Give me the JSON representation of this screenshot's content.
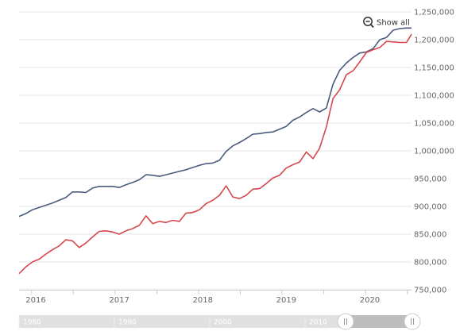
{
  "reset_button": {
    "label": "Show all",
    "icon": "zoom-out-icon"
  },
  "colors": {
    "series_1": "#4a5b7e",
    "series_2": "#d6484d",
    "grid": "#e6e6e6",
    "navigator_bg": "#e0e0e0",
    "navigator_selected": "#bdbdbd",
    "navigator_label": "#ffffff"
  },
  "navigator": {
    "labels": [
      "1980",
      "1990",
      "2000",
      "2010"
    ],
    "range_start": 0.82,
    "range_end": 1.0
  },
  "chart_data": {
    "type": "line",
    "grid": true,
    "legend": "none",
    "ylim": [
      750000,
      1250000
    ],
    "xlim": [
      2015.85,
      2020.55
    ],
    "yticks": [
      750000,
      800000,
      850000,
      900000,
      950000,
      1000000,
      1050000,
      1100000,
      1150000,
      1200000,
      1250000
    ],
    "ytick_labels": [
      "750,000",
      "800,000",
      "850,000",
      "900,000",
      "950,000",
      "1,000,000",
      "1,050,000",
      "1,100,000",
      "1,150,000",
      "1,200,000",
      "1,250,000"
    ],
    "xticks": [
      2016,
      2017,
      2018,
      2019,
      2020
    ],
    "xtick_labels": [
      "2016",
      "2017",
      "2018",
      "2019",
      "2020"
    ],
    "series": [
      {
        "x": [
          2015.85,
          2015.93,
          2016.01,
          2016.09,
          2016.17,
          2016.25,
          2016.33,
          2016.41,
          2016.49,
          2016.57,
          2016.65,
          2016.73,
          2016.81,
          2016.89,
          2016.97,
          2017.05,
          2017.13,
          2017.21,
          2017.29,
          2017.37,
          2017.45,
          2017.53,
          2017.61,
          2017.69,
          2017.77,
          2017.85,
          2017.93,
          2018.01,
          2018.09,
          2018.17,
          2018.25,
          2018.33,
          2018.41,
          2018.49,
          2018.57,
          2018.65,
          2018.73,
          2018.81,
          2018.89,
          2018.97,
          2019.05,
          2019.13,
          2019.21,
          2019.29,
          2019.37,
          2019.45,
          2019.53,
          2019.61,
          2019.69,
          2019.77,
          2019.85,
          2019.93,
          2020.01,
          2020.09,
          2020.17,
          2020.25,
          2020.33,
          2020.41,
          2020.49,
          2020.55
        ],
        "values": [
          882000,
          887000,
          894000,
          898000,
          902000,
          906000,
          911000,
          916000,
          926000,
          926000,
          925000,
          933000,
          936000,
          936000,
          936000,
          934000,
          939000,
          943000,
          948000,
          957000,
          956000,
          954000,
          957000,
          960000,
          963000,
          966000,
          970000,
          974000,
          977000,
          978000,
          983000,
          999000,
          1009000,
          1015000,
          1022000,
          1030000,
          1031000,
          1033000,
          1034000,
          1039000,
          1044000,
          1055000,
          1061000,
          1069000,
          1076000,
          1070000,
          1077000,
          1120000,
          1145000,
          1158000,
          1168000,
          1176000,
          1178000,
          1184000,
          1200000,
          1204000,
          1217000,
          1220000,
          1221000,
          1221000
        ]
      },
      {
        "x": [
          2015.85,
          2015.93,
          2016.01,
          2016.09,
          2016.17,
          2016.25,
          2016.33,
          2016.41,
          2016.49,
          2016.57,
          2016.65,
          2016.73,
          2016.81,
          2016.89,
          2016.97,
          2017.05,
          2017.13,
          2017.21,
          2017.29,
          2017.37,
          2017.45,
          2017.53,
          2017.61,
          2017.69,
          2017.77,
          2017.85,
          2017.93,
          2018.01,
          2018.09,
          2018.17,
          2018.25,
          2018.33,
          2018.41,
          2018.49,
          2018.57,
          2018.65,
          2018.73,
          2018.81,
          2018.89,
          2018.97,
          2019.05,
          2019.13,
          2019.21,
          2019.29,
          2019.37,
          2019.45,
          2019.53,
          2019.61,
          2019.69,
          2019.77,
          2019.85,
          2019.93,
          2020.01,
          2020.09,
          2020.17,
          2020.25,
          2020.33,
          2020.41,
          2020.49,
          2020.55
        ],
        "values": [
          779000,
          791000,
          800000,
          805000,
          814000,
          822000,
          829000,
          840000,
          838000,
          826000,
          834000,
          845000,
          855000,
          856000,
          854000,
          850000,
          856000,
          860000,
          866000,
          883000,
          869000,
          873000,
          871000,
          875000,
          873000,
          888000,
          889000,
          894000,
          905000,
          911000,
          920000,
          937000,
          917000,
          914000,
          920000,
          931000,
          932000,
          941000,
          951000,
          956000,
          969000,
          975000,
          980000,
          998000,
          986000,
          1005000,
          1043000,
          1094000,
          1110000,
          1137000,
          1144000,
          1160000,
          1177000,
          1182000,
          1186000,
          1197000,
          1196000,
          1195000,
          1195000,
          1210000
        ]
      }
    ]
  }
}
